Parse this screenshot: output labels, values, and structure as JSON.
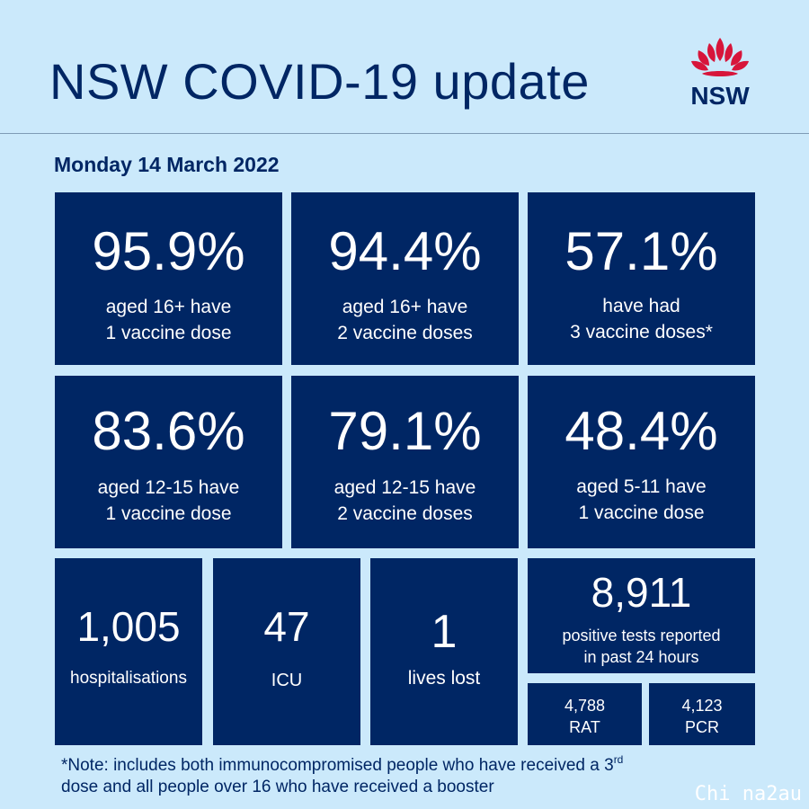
{
  "header": {
    "title": "NSW COVID-19 update",
    "logo_text": "NSW"
  },
  "date": "Monday 14 March 2022",
  "vaccination": [
    {
      "value": "95.9%",
      "line1": "aged 16+ have",
      "line2": "1 vaccine dose"
    },
    {
      "value": "94.4%",
      "line1": "aged 16+ have",
      "line2": "2 vaccine doses"
    },
    {
      "value": "57.1%",
      "line1": "have had",
      "line2": "3 vaccine doses*"
    },
    {
      "value": "83.6%",
      "line1": "aged 12-15 have",
      "line2": "1 vaccine dose"
    },
    {
      "value": "79.1%",
      "line1": "aged 12-15 have",
      "line2": "2 vaccine doses"
    },
    {
      "value": "48.4%",
      "line1": "aged 5-11 have",
      "line2": "1 vaccine dose"
    }
  ],
  "stats": {
    "hospitalisations": {
      "value": "1,005",
      "label": "hospitalisations"
    },
    "icu": {
      "value": "47",
      "label": "ICU"
    },
    "deaths": {
      "value": "1",
      "label": "lives lost"
    }
  },
  "tests": {
    "total": "8,911",
    "line1": "positive tests reported",
    "line2": "in past 24 hours",
    "rat": {
      "value": "4,788",
      "label": "RAT"
    },
    "pcr": {
      "value": "4,123",
      "label": "PCR"
    }
  },
  "note": {
    "part1": "*Note: includes both immunocompromised  people who have received a 3",
    "sup": "rd",
    "part2": "dose and all people over 16 who have received a booster"
  },
  "watermark": "Chi na2au",
  "colors": {
    "background": "#cbe9fb",
    "tile": "#002664",
    "accent_red": "#d7153a"
  }
}
